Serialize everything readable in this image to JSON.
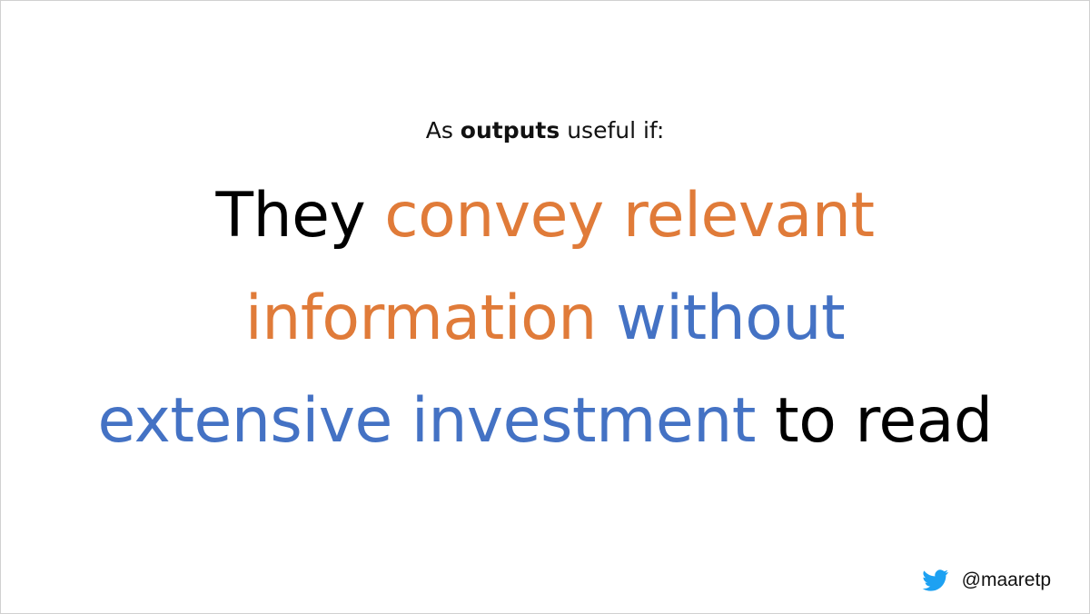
{
  "subtitle": {
    "prefix": "As ",
    "emphasis": "outputs",
    "suffix": " useful if:"
  },
  "headline": {
    "line1": [
      {
        "text": "They ",
        "color": "#000000"
      },
      {
        "text": "convey relevant",
        "color": "#E07B39"
      }
    ],
    "line2": [
      {
        "text": "information ",
        "color": "#E07B39"
      },
      {
        "text": "without",
        "color": "#4472C4"
      }
    ],
    "line3": [
      {
        "text": "extensive investment ",
        "color": "#4472C4"
      },
      {
        "text": "to read",
        "color": "#000000"
      }
    ]
  },
  "footer": {
    "icon": "twitter-bird-icon",
    "icon_color": "#1DA1F2",
    "handle": "@maaretp"
  }
}
